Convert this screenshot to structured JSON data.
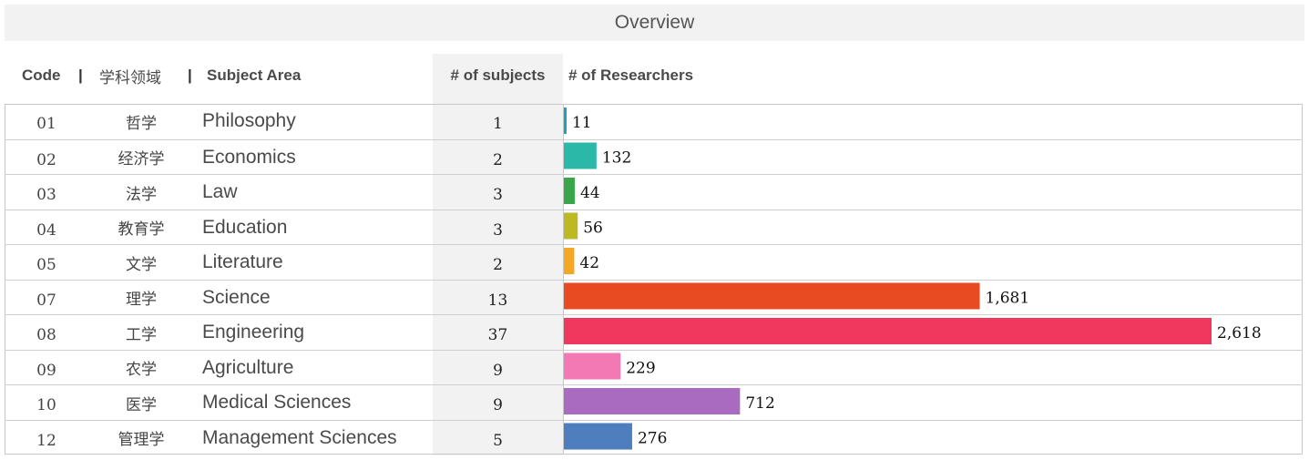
{
  "title": "Overview",
  "headers": {
    "code": "Code",
    "sep": "|",
    "cn_area": "学科领域",
    "subject_area": "Subject Area",
    "num_subjects": "# of subjects",
    "num_researchers": "# of Researchers"
  },
  "chart_data": {
    "type": "bar",
    "orientation": "horizontal",
    "categories": [
      "Philosophy",
      "Economics",
      "Law",
      "Education",
      "Literature",
      "Science",
      "Engineering",
      "Agriculture",
      "Medical Sciences",
      "Management Sciences"
    ],
    "codes": [
      "01",
      "02",
      "03",
      "04",
      "05",
      "07",
      "08",
      "09",
      "10",
      "12"
    ],
    "cn_names": [
      "哲学",
      "经济学",
      "法学",
      "教育学",
      "文学",
      "理学",
      "工学",
      "农学",
      "医学",
      "管理学"
    ],
    "num_subjects": [
      1,
      2,
      3,
      3,
      2,
      13,
      37,
      9,
      9,
      5
    ],
    "values": [
      11,
      132,
      44,
      56,
      42,
      1681,
      2618,
      229,
      712,
      276
    ],
    "value_labels": [
      "11",
      "132",
      "44",
      "56",
      "42",
      "1,681",
      "2,618",
      "229",
      "712",
      "276"
    ],
    "colors": [
      "#1ba0c4",
      "#2bb8a8",
      "#3aa64a",
      "#bdb824",
      "#f5a623",
      "#e84b22",
      "#f0385f",
      "#f279b4",
      "#a86bbf",
      "#4e7ebd"
    ],
    "title": "Overview",
    "xlim": [
      0,
      2618
    ]
  }
}
